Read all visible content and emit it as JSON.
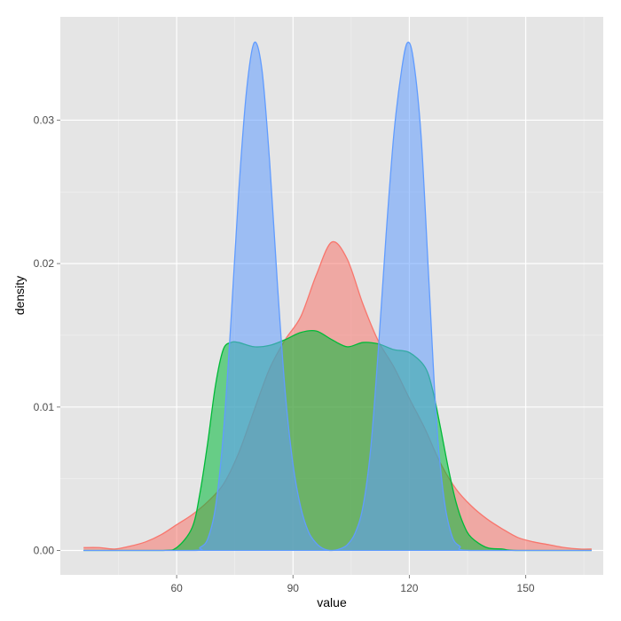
{
  "chart_data": {
    "type": "area",
    "title": "",
    "xlabel": "value",
    "ylabel": "density",
    "xlim": [
      30,
      170
    ],
    "ylim": [
      -0.0017,
      0.0372
    ],
    "x_ticks": [
      60,
      90,
      120,
      150
    ],
    "x_tick_labels": [
      "60",
      "90",
      "120",
      "150"
    ],
    "y_ticks": [
      0.0,
      0.01,
      0.02,
      0.03
    ],
    "y_tick_labels": [
      "0.00",
      "0.01",
      "0.02",
      "0.03"
    ],
    "grid": true,
    "legend": "none",
    "panel_background": "#e5e5e5",
    "grid_color": "#ffffff",
    "fill_opacity": 0.55,
    "series": [
      {
        "color": "#f8766d",
        "x": [
          36,
          40,
          44,
          48,
          52,
          56,
          60,
          64,
          68,
          72,
          76,
          80,
          84,
          88,
          92,
          96,
          100,
          104,
          108,
          112,
          116,
          120,
          124,
          128,
          132,
          136,
          140,
          144,
          148,
          152,
          156,
          160,
          164,
          167
        ],
        "y": [
          0.0002,
          0.0002,
          0.0001,
          0.0003,
          0.0006,
          0.0011,
          0.0018,
          0.0025,
          0.0034,
          0.0046,
          0.0068,
          0.0098,
          0.0127,
          0.0147,
          0.0163,
          0.0192,
          0.0215,
          0.0203,
          0.0172,
          0.0146,
          0.0128,
          0.0106,
          0.0085,
          0.0061,
          0.0043,
          0.0031,
          0.0022,
          0.0015,
          0.0009,
          0.0006,
          0.0004,
          0.0002,
          0.0001,
          0.0001
        ]
      },
      {
        "color": "#00ba38",
        "x": [
          36,
          56,
          60,
          64,
          66,
          68,
          70,
          72,
          74,
          76,
          80,
          84,
          88,
          92,
          96,
          100,
          104,
          108,
          112,
          116,
          120,
          124,
          126,
          128,
          130,
          132,
          134,
          136,
          140,
          144,
          148,
          167
        ],
        "y": [
          0.0,
          0.0,
          0.0002,
          0.0016,
          0.004,
          0.0075,
          0.0115,
          0.014,
          0.0145,
          0.0145,
          0.0142,
          0.0143,
          0.0147,
          0.0152,
          0.0153,
          0.0147,
          0.0142,
          0.0145,
          0.0144,
          0.014,
          0.0138,
          0.0128,
          0.0112,
          0.0086,
          0.0058,
          0.0034,
          0.0018,
          0.0009,
          0.0002,
          0.0001,
          0.0,
          0.0
        ]
      },
      {
        "color": "#619cff",
        "x": [
          36,
          64,
          66,
          68,
          70,
          72,
          74,
          76,
          78,
          80,
          82,
          84,
          86,
          88,
          90,
          92,
          94,
          96,
          98,
          100,
          102,
          104,
          106,
          108,
          110,
          112,
          114,
          116,
          118,
          119.5,
          121,
          123,
          125,
          127,
          129,
          131,
          133,
          136,
          167
        ],
        "y": [
          0.0,
          0.0,
          0.0002,
          0.0008,
          0.003,
          0.008,
          0.016,
          0.025,
          0.032,
          0.0354,
          0.0335,
          0.027,
          0.0185,
          0.011,
          0.006,
          0.003,
          0.0013,
          0.0005,
          0.0001,
          0.0,
          0.0001,
          0.0004,
          0.0012,
          0.003,
          0.007,
          0.014,
          0.022,
          0.029,
          0.0335,
          0.0354,
          0.0343,
          0.029,
          0.019,
          0.009,
          0.0035,
          0.001,
          0.0003,
          0.0,
          0.0
        ]
      }
    ]
  }
}
